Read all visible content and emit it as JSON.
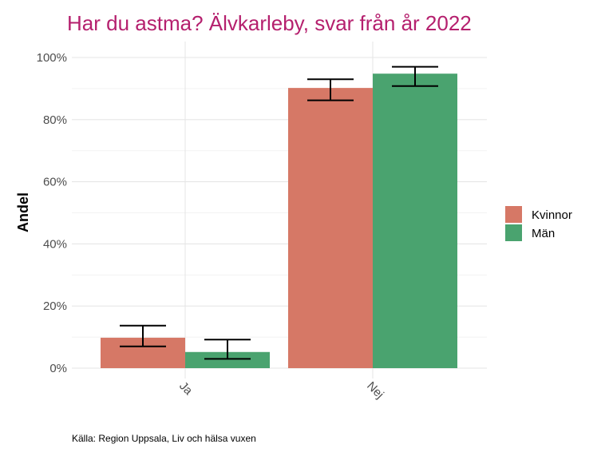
{
  "chart_data": {
    "type": "bar",
    "title": "Har du astma? Älvkarleby, svar från år 2022",
    "xlabel": "",
    "ylabel": "Andel",
    "categories": [
      "Ja",
      "Nej"
    ],
    "series": [
      {
        "name": "Kvinnor",
        "color": "#d67866",
        "values": [
          0.098,
          0.902
        ],
        "error_low": [
          0.07,
          0.862
        ],
        "error_high": [
          0.137,
          0.93
        ]
      },
      {
        "name": "Män",
        "color": "#4aa36f",
        "values": [
          0.052,
          0.948
        ],
        "error_low": [
          0.03,
          0.908
        ],
        "error_high": [
          0.092,
          0.97
        ]
      }
    ],
    "ylim": [
      0,
      1
    ],
    "yticks": [
      0,
      0.2,
      0.4,
      0.6,
      0.8,
      1.0
    ],
    "ytick_labels": [
      "0%",
      "20%",
      "40%",
      "60%",
      "80%",
      "100%"
    ],
    "grid": true,
    "legend_position": "right",
    "caption": "Källa: Region Uppsala, Liv och hälsa vuxen",
    "title_color": "#b5206e"
  }
}
